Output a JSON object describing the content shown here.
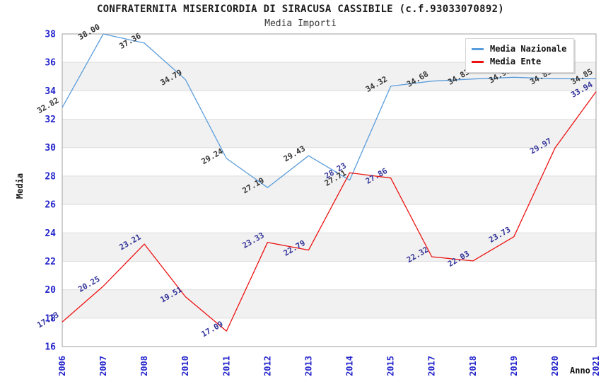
{
  "chart_data": {
    "type": "line",
    "title": "CONFRATERNITA MISERICORDIA DI SIRACUSA CASSIBILE (c.f.93033070892)",
    "subtitle": "Media Importi",
    "xlabel": "Anno",
    "ylabel": "Media",
    "categories": [
      "2006",
      "2007",
      "2008",
      "2010",
      "2011",
      "2012",
      "2013",
      "2014",
      "2015",
      "2017",
      "2018",
      "2019",
      "2020",
      "2021"
    ],
    "series": [
      {
        "name": "Media Nazionale",
        "color": "#5b9ddc",
        "label_color": "#333333",
        "values": [
          32.82,
          38.0,
          37.36,
          34.79,
          29.24,
          27.19,
          29.43,
          27.71,
          34.32,
          34.68,
          34.83,
          34.95,
          34.85,
          34.85
        ]
      },
      {
        "name": "Media Ente",
        "color": "#ed1212",
        "label_color": "#333399",
        "values": [
          17.73,
          20.25,
          23.21,
          19.51,
          17.09,
          23.33,
          22.79,
          28.23,
          27.86,
          22.32,
          22.03,
          23.73,
          29.97,
          33.94
        ]
      }
    ],
    "ylim": [
      16,
      38
    ],
    "ytick_step": 2,
    "grid": true,
    "alternating_bands": true,
    "legend_position": "top-right",
    "tick_label_color": "#2525cc",
    "band_color": "#f1f1f1",
    "gridline_color": "#dedede",
    "plot_border_color": "#a0a0a0"
  }
}
